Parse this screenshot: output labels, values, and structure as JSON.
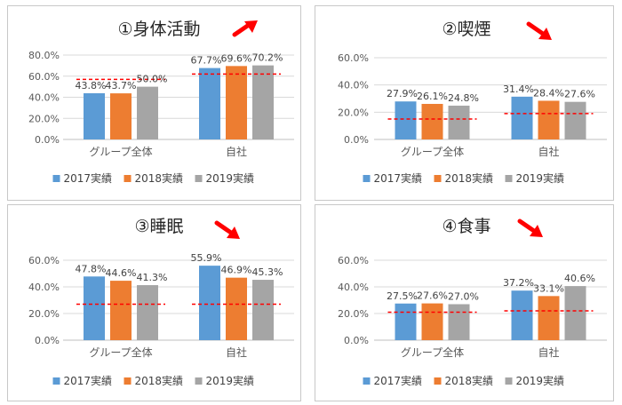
{
  "chart_data": [
    {
      "type": "bar",
      "title": "①身体活動",
      "trend": "up",
      "categories": [
        "グループ全体",
        "自社"
      ],
      "series": [
        {
          "name": "2017実績",
          "values": [
            43.8,
            67.7
          ]
        },
        {
          "name": "2018実績",
          "values": [
            43.7,
            69.6
          ]
        },
        {
          "name": "2019実績",
          "values": [
            50.0,
            70.2
          ]
        }
      ],
      "value_labels": [
        [
          "43.8%",
          "67.7%"
        ],
        [
          "43.7%",
          "69.6%"
        ],
        [
          "50.0%",
          "70.2%"
        ]
      ],
      "benchmarks": [
        57,
        62
      ],
      "ylim": [
        0,
        80
      ],
      "yticks": [
        "0.0%",
        "20.0%",
        "40.0%",
        "60.0%",
        "80.0%"
      ],
      "xlabel": "",
      "ylabel": ""
    },
    {
      "type": "bar",
      "title": "②喫煙",
      "trend": "down",
      "categories": [
        "グループ全体",
        "自社"
      ],
      "series": [
        {
          "name": "2017実績",
          "values": [
            27.9,
            31.4
          ]
        },
        {
          "name": "2018実績",
          "values": [
            26.1,
            28.4
          ]
        },
        {
          "name": "2019実績",
          "values": [
            24.8,
            27.6
          ]
        }
      ],
      "value_labels": [
        [
          "27.9%",
          "31.4%"
        ],
        [
          "26.1%",
          "28.4%"
        ],
        [
          "24.8%",
          "27.6%"
        ]
      ],
      "benchmarks": [
        15,
        19
      ],
      "ylim": [
        0,
        60
      ],
      "yticks": [
        "0.0%",
        "20.0%",
        "40.0%",
        "60.0%"
      ],
      "xlabel": "",
      "ylabel": ""
    },
    {
      "type": "bar",
      "title": "③睡眠",
      "trend": "down",
      "categories": [
        "グループ全体",
        "自社"
      ],
      "series": [
        {
          "name": "2017実績",
          "values": [
            47.8,
            55.9
          ]
        },
        {
          "name": "2018実績",
          "values": [
            44.6,
            46.9
          ]
        },
        {
          "name": "2019実績",
          "values": [
            41.3,
            45.3
          ]
        }
      ],
      "value_labels": [
        [
          "47.8%",
          "55.9%"
        ],
        [
          "44.6%",
          "46.9%"
        ],
        [
          "41.3%",
          "45.3%"
        ]
      ],
      "benchmarks": [
        27,
        27
      ],
      "ylim": [
        0,
        60
      ],
      "yticks": [
        "0.0%",
        "20.0%",
        "40.0%",
        "60.0%"
      ],
      "xlabel": "",
      "ylabel": ""
    },
    {
      "type": "bar",
      "title": "④食事",
      "trend": "down",
      "categories": [
        "グループ全体",
        "自社"
      ],
      "series": [
        {
          "name": "2017実績",
          "values": [
            27.5,
            37.2
          ]
        },
        {
          "name": "2018実績",
          "values": [
            27.6,
            33.1
          ]
        },
        {
          "name": "2019実績",
          "values": [
            27.0,
            40.6
          ]
        }
      ],
      "value_labels": [
        [
          "27.5%",
          "37.2%"
        ],
        [
          "27.6%",
          "33.1%"
        ],
        [
          "27.0%",
          "40.6%"
        ]
      ],
      "benchmarks": [
        21,
        22
      ],
      "ylim": [
        0,
        60
      ],
      "yticks": [
        "0.0%",
        "20.0%",
        "40.0%",
        "60.0%"
      ],
      "xlabel": "",
      "ylabel": ""
    }
  ],
  "colors": {
    "series": [
      "#5B9BD5",
      "#ED7D31",
      "#A5A5A5"
    ],
    "benchmark": "#FF0000",
    "arrow": "#FF0000",
    "gridline": "#D9D9D9",
    "axis": "#BFBFBF"
  },
  "legend_position": "bottom",
  "grid": true
}
